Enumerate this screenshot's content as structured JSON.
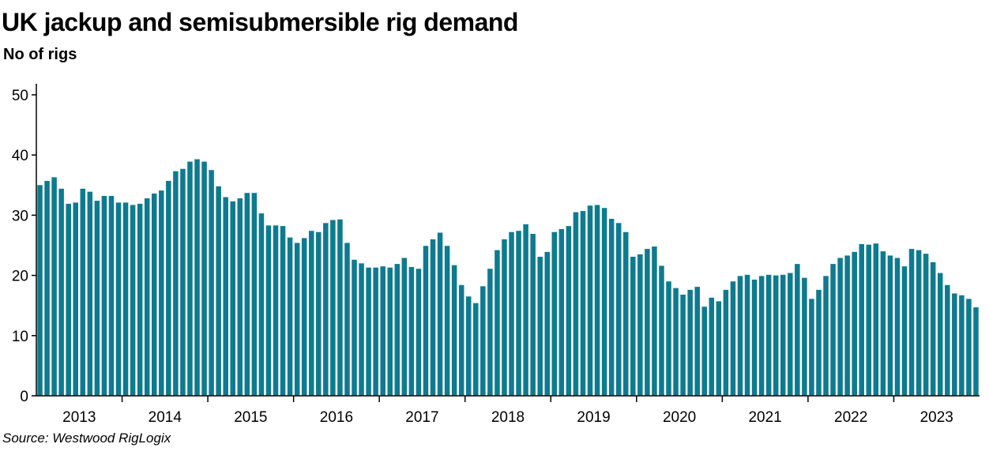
{
  "title": "UK jackup and semisubmersible rig demand",
  "subtitle": "No of rigs",
  "source": "Source: Westwood RigLogix",
  "colors": {
    "bar": "#0e7a8f",
    "axis": "#000000"
  },
  "chart_data": {
    "type": "bar",
    "title": "UK jackup and semisubmersible rig demand",
    "ylabel": "No of rigs",
    "xlabel": "",
    "ylim": [
      0,
      50
    ],
    "yticks": [
      0,
      10,
      20,
      30,
      40,
      50
    ],
    "grid": false,
    "legend": "none",
    "x_axis_labels": [
      "2013",
      "2014",
      "2015",
      "2016",
      "2017",
      "2018",
      "2019",
      "2020",
      "2021",
      "2022",
      "2023"
    ],
    "start_period": "2013-01",
    "frequency": "monthly",
    "values": [
      35.0,
      35.7,
      36.3,
      34.4,
      31.9,
      32.1,
      34.4,
      33.9,
      32.4,
      33.2,
      33.2,
      32.1,
      32.1,
      31.7,
      31.9,
      32.8,
      33.6,
      34.1,
      35.7,
      37.3,
      37.7,
      38.9,
      39.3,
      38.9,
      37.5,
      34.8,
      33.0,
      32.3,
      32.8,
      33.7,
      33.7,
      30.3,
      28.3,
      28.3,
      28.2,
      26.3,
      25.4,
      26.2,
      27.4,
      27.2,
      28.7,
      29.2,
      29.3,
      25.4,
      22.6,
      22.0,
      21.3,
      21.3,
      21.5,
      21.3,
      21.9,
      22.9,
      21.4,
      21.1,
      24.9,
      26.0,
      27.1,
      24.9,
      21.7,
      18.4,
      16.5,
      15.4,
      18.2,
      21.1,
      24.2,
      26.0,
      27.2,
      27.4,
      28.5,
      26.9,
      23.1,
      23.9,
      27.2,
      27.7,
      28.2,
      30.5,
      30.7,
      31.6,
      31.7,
      31.2,
      29.4,
      28.7,
      27.2,
      23.1,
      23.5,
      24.4,
      24.8,
      21.6,
      19.0,
      17.9,
      16.8,
      17.6,
      18.1,
      14.8,
      16.3,
      15.7,
      17.6,
      19.0,
      19.9,
      20.1,
      19.3,
      19.9,
      20.1,
      20.0,
      20.1,
      20.4,
      21.9,
      19.6,
      16.1,
      17.6,
      19.9,
      21.9,
      22.9,
      23.3,
      23.9,
      25.2,
      25.1,
      25.3,
      24.0,
      23.3,
      22.9,
      21.5,
      24.4,
      24.2,
      23.6,
      22.2,
      20.4,
      18.4,
      17.0,
      16.7,
      16.1,
      14.7
    ]
  }
}
